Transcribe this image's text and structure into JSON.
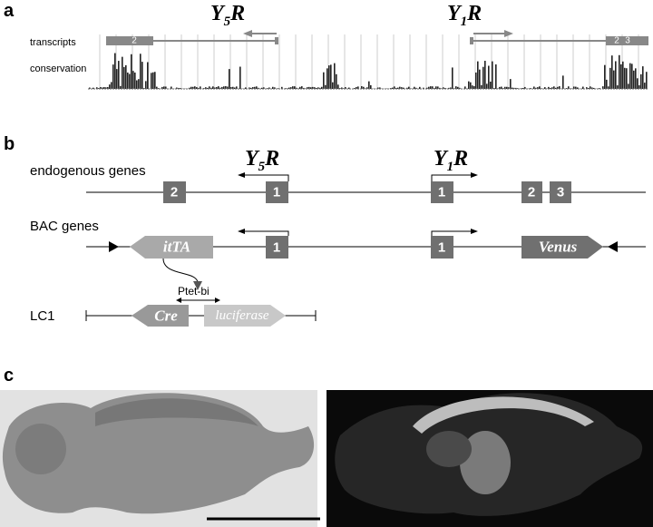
{
  "panels": {
    "a": {
      "label": "a",
      "y5r": {
        "letter": "Y",
        "sub": "5",
        "suffix": "R"
      },
      "y1r": {
        "letter": "Y",
        "sub": "1",
        "suffix": "R"
      },
      "tracks": [
        "transcripts",
        "conservation"
      ],
      "exons_left": [
        "2"
      ],
      "exons_right": [
        "2",
        "3"
      ]
    },
    "b": {
      "label": "b",
      "y5r": {
        "letter": "Y",
        "sub": "5",
        "suffix": "R"
      },
      "y1r": {
        "letter": "Y",
        "sub": "1",
        "suffix": "R"
      },
      "endogenous": {
        "name": "endogenous genes",
        "exons": [
          "2",
          "1",
          "1",
          "2",
          "3"
        ]
      },
      "bac": {
        "name": "BAC genes",
        "transactivator": "itTA",
        "exons": [
          "1",
          "1"
        ],
        "reporter": "Venus"
      },
      "promoter": {
        "main": "P",
        "sub": "tet-bi"
      },
      "lc1": {
        "name": "LC1",
        "left": "Cre",
        "right": "luciferase"
      }
    },
    "c": {
      "label": "c"
    }
  }
}
